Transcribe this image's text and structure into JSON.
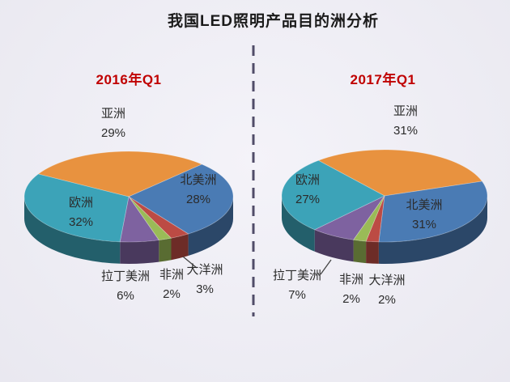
{
  "page": {
    "title": "我国LED照明产品目的洲分析"
  },
  "colors": {
    "subtitle_accent": "#C00000",
    "divider": "#504C68",
    "label_text": "#2B2B2B",
    "background": "#EFEEF4"
  },
  "chart_data": [
    {
      "type": "pie",
      "style": "3d",
      "title": "2016年Q1",
      "unit": "%",
      "slices": [
        {
          "key": "asia",
          "name": "亚洲",
          "value": 29,
          "pct_label": "29%",
          "color": "#E8923F"
        },
        {
          "key": "north-america",
          "name": "北美洲",
          "value": 28,
          "pct_label": "28%",
          "color": "#4A7BB4"
        },
        {
          "key": "oceania",
          "name": "大洋洲",
          "value": 3,
          "pct_label": "3%",
          "color": "#BC4B44"
        },
        {
          "key": "africa",
          "name": "非洲",
          "value": 2,
          "pct_label": "2%",
          "color": "#9ABB57"
        },
        {
          "key": "latin-america",
          "name": "拉丁美洲",
          "value": 6,
          "pct_label": "6%",
          "color": "#7E62A0"
        },
        {
          "key": "europe",
          "name": "欧洲",
          "value": 32,
          "pct_label": "32%",
          "color": "#3CA3B8"
        }
      ],
      "layout": {
        "start_angle_deg": -60,
        "clockwise": true,
        "label_position": "outside"
      }
    },
    {
      "type": "pie",
      "style": "3d",
      "title": "2017年Q1",
      "unit": "%",
      "slices": [
        {
          "key": "asia",
          "name": "亚洲",
          "value": 31,
          "pct_label": "31%",
          "color": "#E8923F"
        },
        {
          "key": "north-america",
          "name": "北美洲",
          "value": 31,
          "pct_label": "31%",
          "color": "#4A7BB4"
        },
        {
          "key": "oceania",
          "name": "大洋洲",
          "value": 2,
          "pct_label": "2%",
          "color": "#BC4B44"
        },
        {
          "key": "africa",
          "name": "非洲",
          "value": 2,
          "pct_label": "2%",
          "color": "#9ABB57"
        },
        {
          "key": "latin-america",
          "name": "拉丁美洲",
          "value": 7,
          "pct_label": "7%",
          "color": "#7E62A0"
        },
        {
          "key": "europe",
          "name": "欧洲",
          "value": 27,
          "pct_label": "27%",
          "color": "#3CA3B8"
        }
      ],
      "layout": {
        "start_angle_deg": -40,
        "clockwise": true,
        "label_position": "outside"
      }
    }
  ]
}
